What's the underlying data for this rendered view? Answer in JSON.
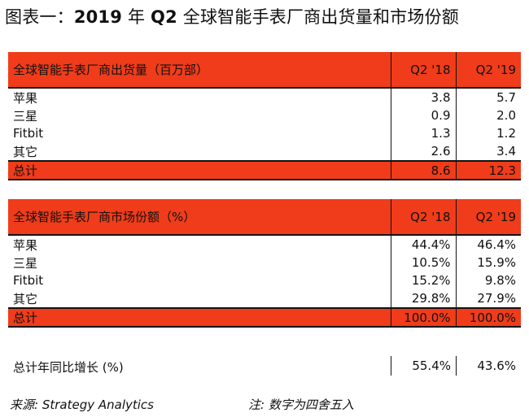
{
  "title": {
    "prefix": "图表一：",
    "bold": "2019",
    "mid1": " 年 ",
    "bold2": "Q2",
    "rest": " 全球智能手表厂商出货量和市场份额"
  },
  "shipments": {
    "header": "全球智能手表厂商出货量（百万部）",
    "col1": "Q2 '18",
    "col2": "Q2 '19",
    "rows": [
      {
        "name": "苹果",
        "v18": "3.8",
        "v19": "5.7"
      },
      {
        "name": "三星",
        "v18": "0.9",
        "v19": "2.0"
      },
      {
        "name": "Fitbit",
        "v18": "1.3",
        "v19": "1.2"
      },
      {
        "name": "其它",
        "v18": "2.6",
        "v19": "3.4"
      }
    ],
    "total": {
      "name": "总计",
      "v18": "8.6",
      "v19": "12.3"
    }
  },
  "share": {
    "header": "全球智能手表厂商市场份额（%）",
    "col1": "Q2 '18",
    "col2": "Q2 '19",
    "rows": [
      {
        "name": "苹果",
        "v18": "44.4%",
        "v19": "46.4%"
      },
      {
        "name": "三星",
        "v18": "10.5%",
        "v19": "15.9%"
      },
      {
        "name": "Fitbit",
        "v18": "15.2%",
        "v19": "9.8%"
      },
      {
        "name": "其它",
        "v18": "29.8%",
        "v19": "27.9%"
      }
    ],
    "total": {
      "name": "总计",
      "v18": "100.0%",
      "v19": "100.0%"
    }
  },
  "growth": {
    "label": "总计年同比增长 (%)",
    "v18": "55.4%",
    "v19": "43.6%"
  },
  "footer": {
    "source": "来源:   Strategy Analytics",
    "note": "注:  数字为四舍五入"
  },
  "colors": {
    "accent": "#f03c1a"
  }
}
